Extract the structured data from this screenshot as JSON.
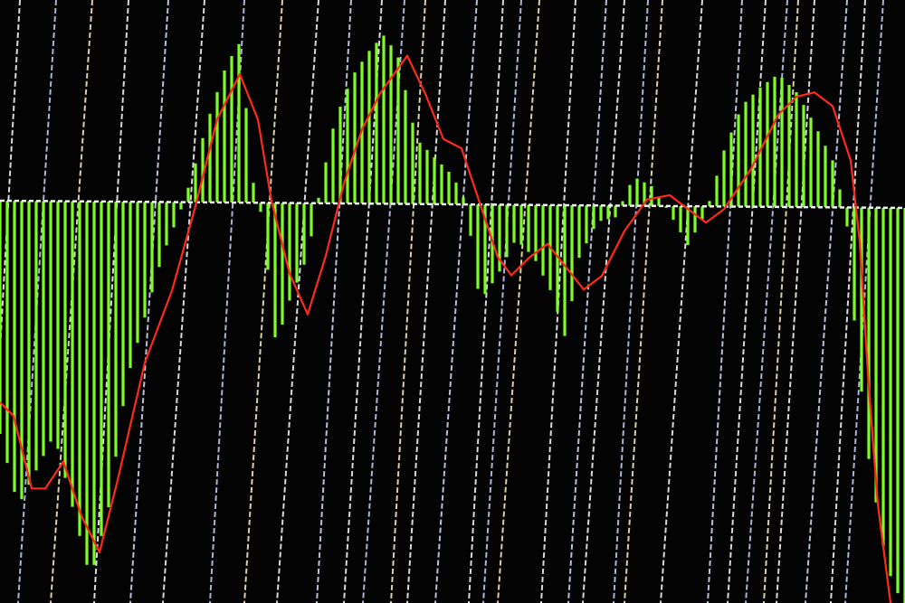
{
  "chart_data": {
    "type": "bar",
    "title": "",
    "xlabel": "",
    "ylabel": "",
    "grid": true,
    "legend": "none",
    "ylim": [
      -4.45,
      1.9
    ],
    "xlim": [
      0,
      100
    ],
    "histogram": {
      "color": "#7CFC2A",
      "points": [
        [
          0,
          -2.58
        ],
        [
          2,
          -3.38
        ],
        [
          4,
          -2.98
        ],
        [
          6,
          -2.58
        ],
        [
          8,
          -3.38
        ],
        [
          10,
          -4.18
        ],
        [
          12,
          -3.38
        ],
        [
          14,
          -1.98
        ],
        [
          16,
          -1.28
        ],
        [
          18,
          -0.58
        ],
        [
          20,
          -0.08
        ],
        [
          21,
          0.22
        ],
        [
          23,
          0.92
        ],
        [
          25,
          1.52
        ],
        [
          26.5,
          1.77
        ],
        [
          28,
          0.22
        ],
        [
          29,
          -0.18
        ],
        [
          30.5,
          -1.58
        ],
        [
          32,
          -1.08
        ],
        [
          34,
          -0.58
        ],
        [
          35.5,
          0.22
        ],
        [
          37,
          0.92
        ],
        [
          39,
          1.42
        ],
        [
          41,
          1.72
        ],
        [
          42.5,
          1.87
        ],
        [
          44,
          1.62
        ],
        [
          46,
          0.72
        ],
        [
          48,
          0.52
        ],
        [
          50,
          0.32
        ],
        [
          51.5,
          0.02
        ],
        [
          53,
          -1.08
        ],
        [
          55,
          -0.78
        ],
        [
          57,
          -0.38
        ],
        [
          59,
          -0.58
        ],
        [
          61,
          -0.98
        ],
        [
          62.5,
          -1.48
        ],
        [
          64,
          -0.58
        ],
        [
          66,
          -0.18
        ],
        [
          68,
          -0.13
        ],
        [
          70,
          0.32
        ],
        [
          72,
          0.22
        ],
        [
          74,
          -0.08
        ],
        [
          76,
          -0.43
        ],
        [
          78,
          -0.08
        ],
        [
          80,
          0.62
        ],
        [
          82,
          1.12
        ],
        [
          84,
          1.32
        ],
        [
          86,
          1.47
        ],
        [
          88,
          1.27
        ],
        [
          90,
          0.92
        ],
        [
          92,
          0.52
        ],
        [
          93.5,
          -0.08
        ],
        [
          94.5,
          -1.38
        ],
        [
          96,
          -2.78
        ],
        [
          98,
          -3.98
        ],
        [
          100,
          -4.45
        ]
      ]
    },
    "signal": {
      "color": "#FF2A1A",
      "points": [
        [
          0,
          -2.23
        ],
        [
          1.5,
          -2.38
        ],
        [
          3.5,
          -3.18
        ],
        [
          5,
          -3.18
        ],
        [
          7,
          -2.88
        ],
        [
          9,
          -3.48
        ],
        [
          11,
          -3.88
        ],
        [
          13,
          -3.08
        ],
        [
          16,
          -1.78
        ],
        [
          19,
          -0.98
        ],
        [
          21.5,
          -0.08
        ],
        [
          24,
          0.92
        ],
        [
          26.5,
          1.42
        ],
        [
          28.5,
          0.92
        ],
        [
          30,
          0.02
        ],
        [
          32,
          -0.78
        ],
        [
          34,
          -1.23
        ],
        [
          36,
          -0.58
        ],
        [
          38,
          0.22
        ],
        [
          40,
          0.82
        ],
        [
          42,
          1.22
        ],
        [
          45,
          1.64
        ],
        [
          47,
          1.22
        ],
        [
          49,
          0.72
        ],
        [
          51,
          0.62
        ],
        [
          53,
          0.02
        ],
        [
          55,
          -0.58
        ],
        [
          56.5,
          -0.78
        ],
        [
          58.5,
          -0.58
        ],
        [
          60.5,
          -0.43
        ],
        [
          62.5,
          -0.68
        ],
        [
          64.5,
          -0.93
        ],
        [
          66.5,
          -0.78
        ],
        [
          69,
          -0.28
        ],
        [
          71.5,
          0.07
        ],
        [
          74,
          0.12
        ],
        [
          76,
          -0.03
        ],
        [
          78,
          -0.18
        ],
        [
          80,
          -0.03
        ],
        [
          83,
          0.42
        ],
        [
          86,
          1.02
        ],
        [
          88,
          1.22
        ],
        [
          90,
          1.27
        ],
        [
          92,
          1.12
        ],
        [
          94,
          0.52
        ],
        [
          95,
          -0.38
        ],
        [
          96,
          -1.98
        ],
        [
          97,
          -3.28
        ],
        [
          98.5,
          -4.45
        ]
      ]
    }
  }
}
